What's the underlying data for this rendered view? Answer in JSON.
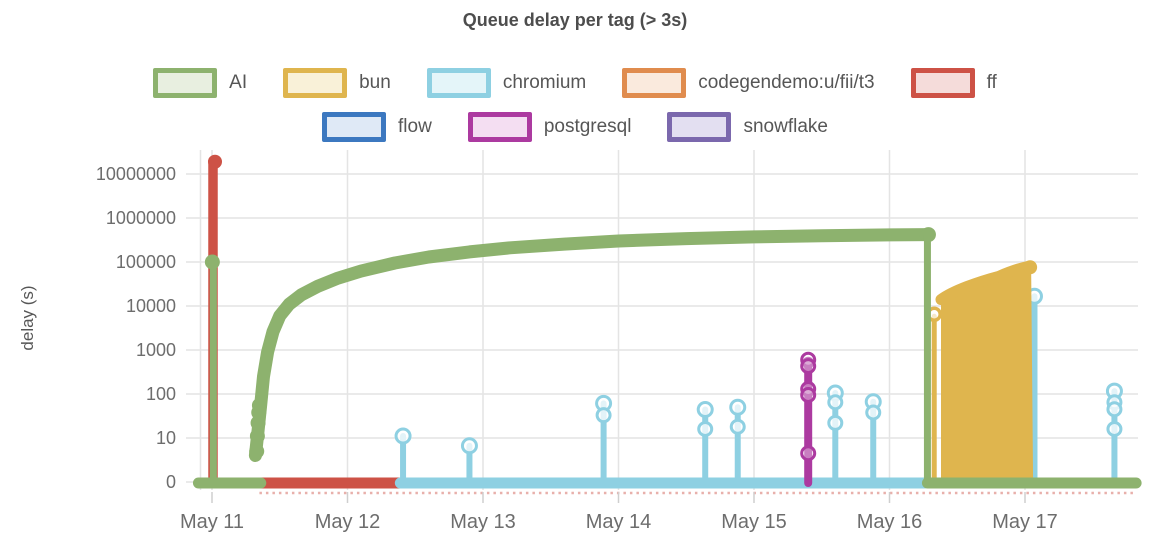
{
  "chart_data": {
    "type": "line",
    "title": "Queue delay per tag (> 3s)",
    "xlabel": "",
    "ylabel": "delay (s)",
    "y_scale": "symlog",
    "grid": true,
    "legend_position": "top-center",
    "legend_rows": [
      [
        "AI",
        "bun",
        "chromium",
        "codegendemo:u/fii/t3",
        "ff"
      ],
      [
        "flow",
        "postgresql",
        "snowflake"
      ]
    ],
    "x_ticks": [
      {
        "label": "May 11",
        "day": 11
      },
      {
        "label": "May 12",
        "day": 12
      },
      {
        "label": "May 13",
        "day": 13
      },
      {
        "label": "May 14",
        "day": 14
      },
      {
        "label": "May 15",
        "day": 15
      },
      {
        "label": "May 16",
        "day": 16
      },
      {
        "label": "May 17",
        "day": 17
      }
    ],
    "y_ticks": [
      {
        "label": "10000000",
        "value": 10000000
      },
      {
        "label": "1000000",
        "value": 1000000
      },
      {
        "label": "100000",
        "value": 100000
      },
      {
        "label": "10000",
        "value": 10000
      },
      {
        "label": "1000",
        "value": 1000
      },
      {
        "label": "100",
        "value": 100
      },
      {
        "label": "10",
        "value": 10
      },
      {
        "label": "0",
        "value": 0
      }
    ],
    "series": [
      {
        "name": "AI",
        "color": "#8db26e",
        "legend_fill": "#e8efe0",
        "spike": {
          "day": 11.01,
          "top": 100000
        },
        "zero_runs": [
          [
            10.9,
            11.36
          ],
          [
            16.28,
            17.82
          ]
        ],
        "curve": [
          [
            11.32,
            4
          ],
          [
            11.34,
            15
          ],
          [
            11.36,
            60
          ],
          [
            11.38,
            250
          ],
          [
            11.41,
            900
          ],
          [
            11.45,
            2600
          ],
          [
            11.5,
            6000
          ],
          [
            11.57,
            11000
          ],
          [
            11.66,
            18000
          ],
          [
            11.78,
            28000
          ],
          [
            11.92,
            42000
          ],
          [
            12.1,
            62000
          ],
          [
            12.35,
            95000
          ],
          [
            12.6,
            130000
          ],
          [
            12.9,
            170000
          ],
          [
            13.2,
            210000
          ],
          [
            13.6,
            255000
          ],
          [
            14.0,
            300000
          ],
          [
            14.5,
            340000
          ],
          [
            15.0,
            372000
          ],
          [
            15.5,
            395000
          ],
          [
            16.0,
            412000
          ],
          [
            16.27,
            420000
          ]
        ],
        "curve_drop_day": 16.28,
        "start_markers": [
          [
            11.33,
            5
          ],
          [
            11.335,
            11
          ],
          [
            11.34,
            22
          ],
          [
            11.345,
            38
          ],
          [
            11.35,
            55
          ]
        ]
      },
      {
        "name": "bun",
        "color": "#dfb54e",
        "legend_fill": "#f9f1d8",
        "stem": {
          "day": 16.33,
          "top": 6500
        },
        "area": {
          "day0": 16.38,
          "day1": 17.06,
          "top0": 14000,
          "top1": 80000
        }
      },
      {
        "name": "chromium",
        "color": "#8ed0e2",
        "legend_fill": "#e4f5f9",
        "zero_run": [
          12.39,
          16.26
        ],
        "stems": [
          {
            "day": 12.41,
            "top": 10,
            "circles": [
              10
            ]
          },
          {
            "day": 12.9,
            "top": 6,
            "circles": [
              6
            ]
          },
          {
            "day": 13.89,
            "top": 55,
            "circles": [
              55,
              33
            ]
          },
          {
            "day": 14.64,
            "top": 40,
            "circles": [
              40,
              16
            ]
          },
          {
            "day": 14.88,
            "top": 45,
            "circles": [
              45,
              18
            ]
          },
          {
            "day": 15.6,
            "top": 95,
            "circles": [
              95,
              65,
              22
            ]
          },
          {
            "day": 15.88,
            "top": 60,
            "circles": [
              60,
              38
            ]
          },
          {
            "day": 17.07,
            "top": 15000,
            "circles": [
              15000
            ],
            "behind_bun": true
          },
          {
            "day": 17.66,
            "top": 105,
            "circles": [
              105,
              65,
              45,
              16
            ]
          }
        ]
      },
      {
        "name": "codegendemo:u/fii/t3",
        "color": "#e08c4e",
        "legend_fill": "#faeadd"
      },
      {
        "name": "ff",
        "color": "#cd5246",
        "legend_fill": "#f5dcda",
        "spike": {
          "day": 11.0,
          "top": 20000000
        },
        "zero_run": [
          11.0,
          12.38
        ],
        "zero_dots": [
          11.35,
          17.82
        ]
      },
      {
        "name": "flow",
        "color": "#3c78c0",
        "legend_fill": "#dfe9f6"
      },
      {
        "name": "postgresql",
        "color": "#ac3aa0",
        "legend_fill": "#f4def2",
        "stem": {
          "day": 15.4,
          "top": 600,
          "circles": [
            600,
            430,
            130,
            95,
            4.5
          ]
        }
      },
      {
        "name": "snowflake",
        "color": "#7b68ad",
        "legend_fill": "#e3dff1"
      }
    ]
  }
}
